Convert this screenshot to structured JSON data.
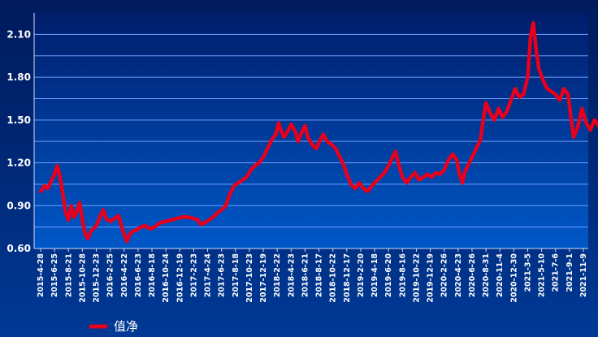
{
  "chart_data": {
    "type": "line",
    "title": "",
    "xlabel": "",
    "ylabel": "",
    "ylim": [
      0.6,
      2.25
    ],
    "y_ticks": [
      "0.60",
      "0.90",
      "1.20",
      "1.50",
      "1.80",
      "2.10"
    ],
    "x_ticks": [
      "2015-4-28",
      "2015-6-25",
      "2015-8-21",
      "2015-10-28",
      "2015-12-23",
      "2016-2-25",
      "2016-4-22",
      "2016-6-23",
      "2016-8-18",
      "2016-10-24",
      "2016-12-19",
      "2017-2-23",
      "2017-4-24",
      "2017-6-23",
      "2017-8-18",
      "2017-10-23",
      "2017-12-19",
      "2018-2-22",
      "2018-4-23",
      "2018-6-21",
      "2018-8-17",
      "2018-10-22",
      "2018-12-17",
      "2019-2-20",
      "2019-4-18",
      "2019-6-20",
      "2019-8-16",
      "2019-10-22",
      "2019-12-19",
      "2020-2-26",
      "2020-4-23",
      "2020-6-26",
      "2020-8-31",
      "2020-11-4",
      "2020-12-30",
      "2021-3-5",
      "2021-5-10",
      "2021-7-6",
      "2021-9-1",
      "2021-11-9"
    ],
    "grid": true,
    "legend_position": "bottom-left",
    "series": [
      {
        "name": "值净",
        "color": "#e8001c",
        "values": [
          [
            0,
            1.0
          ],
          [
            0.3,
            1.04
          ],
          [
            0.5,
            1.02
          ],
          [
            0.8,
            1.08
          ],
          [
            1.0,
            1.12
          ],
          [
            1.2,
            1.18
          ],
          [
            1.4,
            1.1
          ],
          [
            1.6,
            0.98
          ],
          [
            1.8,
            0.85
          ],
          [
            2.0,
            0.8
          ],
          [
            2.2,
            0.9
          ],
          [
            2.4,
            0.82
          ],
          [
            2.6,
            0.86
          ],
          [
            2.8,
            0.92
          ],
          [
            3.0,
            0.8
          ],
          [
            3.2,
            0.7
          ],
          [
            3.4,
            0.67
          ],
          [
            3.6,
            0.72
          ],
          [
            3.8,
            0.74
          ],
          [
            4.0,
            0.76
          ],
          [
            4.3,
            0.83
          ],
          [
            4.5,
            0.87
          ],
          [
            4.7,
            0.81
          ],
          [
            5.0,
            0.79
          ],
          [
            5.3,
            0.81
          ],
          [
            5.6,
            0.83
          ],
          [
            5.8,
            0.76
          ],
          [
            6.0,
            0.7
          ],
          [
            6.2,
            0.65
          ],
          [
            6.4,
            0.7
          ],
          [
            6.6,
            0.72
          ],
          [
            6.9,
            0.73
          ],
          [
            7.2,
            0.75
          ],
          [
            7.5,
            0.76
          ],
          [
            7.8,
            0.74
          ],
          [
            8.0,
            0.74
          ],
          [
            8.3,
            0.76
          ],
          [
            8.6,
            0.78
          ],
          [
            9.0,
            0.79
          ],
          [
            9.4,
            0.8
          ],
          [
            9.8,
            0.81
          ],
          [
            10.2,
            0.82
          ],
          [
            10.6,
            0.82
          ],
          [
            11.0,
            0.81
          ],
          [
            11.3,
            0.8
          ],
          [
            11.5,
            0.77
          ],
          [
            11.8,
            0.78
          ],
          [
            12.1,
            0.8
          ],
          [
            12.4,
            0.82
          ],
          [
            12.7,
            0.85
          ],
          [
            13.0,
            0.87
          ],
          [
            13.3,
            0.9
          ],
          [
            13.6,
            0.98
          ],
          [
            13.9,
            1.04
          ],
          [
            14.2,
            1.06
          ],
          [
            14.5,
            1.08
          ],
          [
            14.8,
            1.1
          ],
          [
            15.1,
            1.15
          ],
          [
            15.4,
            1.18
          ],
          [
            15.7,
            1.2
          ],
          [
            16.0,
            1.24
          ],
          [
            16.3,
            1.3
          ],
          [
            16.6,
            1.36
          ],
          [
            16.9,
            1.4
          ],
          [
            17.1,
            1.48
          ],
          [
            17.3,
            1.42
          ],
          [
            17.5,
            1.38
          ],
          [
            17.8,
            1.43
          ],
          [
            18.0,
            1.47
          ],
          [
            18.3,
            1.42
          ],
          [
            18.5,
            1.35
          ],
          [
            18.7,
            1.4
          ],
          [
            19.0,
            1.46
          ],
          [
            19.2,
            1.38
          ],
          [
            19.5,
            1.33
          ],
          [
            19.8,
            1.3
          ],
          [
            20.0,
            1.34
          ],
          [
            20.3,
            1.4
          ],
          [
            20.6,
            1.35
          ],
          [
            20.9,
            1.33
          ],
          [
            21.2,
            1.3
          ],
          [
            21.5,
            1.24
          ],
          [
            21.8,
            1.18
          ],
          [
            22.0,
            1.12
          ],
          [
            22.3,
            1.05
          ],
          [
            22.6,
            1.02
          ],
          [
            22.9,
            1.06
          ],
          [
            23.2,
            1.02
          ],
          [
            23.5,
            1.0
          ],
          [
            23.8,
            1.04
          ],
          [
            24.1,
            1.07
          ],
          [
            24.4,
            1.1
          ],
          [
            24.7,
            1.13
          ],
          [
            25.0,
            1.18
          ],
          [
            25.3,
            1.24
          ],
          [
            25.5,
            1.28
          ],
          [
            25.7,
            1.2
          ],
          [
            26.0,
            1.1
          ],
          [
            26.3,
            1.06
          ],
          [
            26.6,
            1.1
          ],
          [
            26.9,
            1.13
          ],
          [
            27.2,
            1.08
          ],
          [
            27.5,
            1.1
          ],
          [
            27.8,
            1.12
          ],
          [
            28.1,
            1.1
          ],
          [
            28.4,
            1.13
          ],
          [
            28.7,
            1.12
          ],
          [
            29.0,
            1.15
          ],
          [
            29.3,
            1.22
          ],
          [
            29.6,
            1.26
          ],
          [
            29.9,
            1.22
          ],
          [
            30.1,
            1.12
          ],
          [
            30.3,
            1.06
          ],
          [
            30.5,
            1.14
          ],
          [
            30.8,
            1.2
          ],
          [
            31.0,
            1.24
          ],
          [
            31.3,
            1.3
          ],
          [
            31.6,
            1.36
          ],
          [
            31.8,
            1.5
          ],
          [
            32.0,
            1.62
          ],
          [
            32.3,
            1.55
          ],
          [
            32.6,
            1.5
          ],
          [
            32.9,
            1.58
          ],
          [
            33.2,
            1.52
          ],
          [
            33.5,
            1.56
          ],
          [
            33.8,
            1.64
          ],
          [
            34.1,
            1.72
          ],
          [
            34.4,
            1.66
          ],
          [
            34.7,
            1.68
          ],
          [
            35.0,
            1.8
          ],
          [
            35.2,
            2.08
          ],
          [
            35.4,
            2.18
          ],
          [
            35.6,
            2.0
          ],
          [
            35.8,
            1.86
          ],
          [
            36.1,
            1.78
          ],
          [
            36.4,
            1.72
          ],
          [
            36.7,
            1.7
          ],
          [
            37.0,
            1.68
          ],
          [
            37.3,
            1.64
          ],
          [
            37.6,
            1.72
          ],
          [
            37.9,
            1.68
          ],
          [
            38.1,
            1.52
          ],
          [
            38.3,
            1.38
          ],
          [
            38.6,
            1.45
          ],
          [
            38.9,
            1.58
          ],
          [
            39.2,
            1.48
          ],
          [
            39.5,
            1.43
          ],
          [
            39.8,
            1.5
          ],
          [
            40.1,
            1.46
          ],
          [
            40.4,
            1.4
          ],
          [
            40.7,
            1.36
          ],
          [
            41.0,
            1.38
          ]
        ]
      }
    ]
  }
}
